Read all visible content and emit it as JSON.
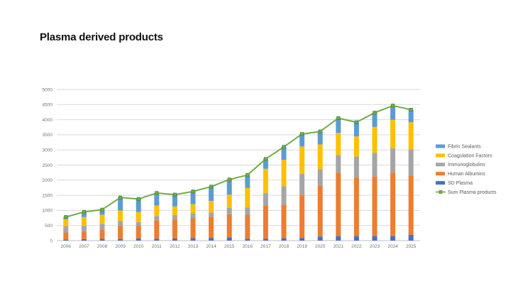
{
  "title": "Plasma derived products",
  "chart_data": {
    "type": "bar",
    "subtype": "stacked-column-with-line",
    "title": "Plasma derived products",
    "xlabel": "",
    "ylabel": "",
    "ylim": [
      0,
      5000
    ],
    "ytick_step": 500,
    "yticks": [
      0,
      500,
      1000,
      1500,
      2000,
      2500,
      3000,
      3500,
      4000,
      4500,
      5000
    ],
    "grid": true,
    "legend_position": "right",
    "categories": [
      "2006",
      "2007",
      "2008",
      "2009",
      "2010",
      "2011",
      "2012",
      "2013",
      "2014",
      "2015",
      "2016",
      "2017",
      "2018",
      "2019",
      "2020",
      "2021",
      "2022",
      "2023",
      "2024",
      "2025"
    ],
    "stack_bottom_to_top": [
      "SD Plasma",
      "Human Albumins",
      "Immunoglobulins",
      "Coagulation Factors",
      "Fibrin Sealants"
    ],
    "series": [
      {
        "name": "Fibrin Sealants",
        "color": "#5B9BD5",
        "values": [
          70,
          170,
          170,
          430,
          430,
          415,
          390,
          420,
          470,
          500,
          430,
          325,
          430,
          410,
          430,
          485,
          470,
          470,
          470,
          415
        ]
      },
      {
        "name": "Coagulation Factors",
        "color": "#FFC000",
        "values": [
          240,
          290,
          300,
          350,
          330,
          345,
          280,
          295,
          390,
          435,
          640,
          795,
          870,
          905,
          820,
          740,
          665,
          860,
          935,
          900
        ]
      },
      {
        "name": "Immunoglobulins",
        "color": "#A5A5A5",
        "values": [
          200,
          180,
          195,
          155,
          125,
          140,
          155,
          170,
          135,
          210,
          255,
          430,
          610,
          700,
          550,
          585,
          700,
          780,
          820,
          860
        ]
      },
      {
        "name": "Human Albumins",
        "color": "#ED7D31",
        "values": [
          230,
          260,
          305,
          435,
          420,
          610,
          625,
          655,
          700,
          765,
          780,
          1090,
          1110,
          1420,
          1680,
          2090,
          1930,
          1970,
          2090,
          1965
        ]
      },
      {
        "name": "SD Plasma",
        "color": "#4472C4",
        "values": [
          40,
          50,
          55,
          55,
          70,
          65,
          70,
          85,
          90,
          110,
          65,
          60,
          80,
          90,
          130,
          150,
          150,
          150,
          150,
          190
        ]
      }
    ],
    "line_series": {
      "name": "Sum Plasma products",
      "color": "#70AD47",
      "marker_color": "#548235",
      "values": [
        780,
        950,
        1025,
        1425,
        1375,
        1575,
        1520,
        1625,
        1785,
        2020,
        2170,
        2700,
        3100,
        3525,
        3610,
        4050,
        3915,
        4230,
        4465,
        4330
      ]
    },
    "legend": [
      "Fibrin Sealants",
      "Coagulation Factors",
      "Immunoglobulins",
      "Human Albumins",
      "SD Plasma",
      "Sum Plasma products"
    ],
    "style": {
      "gridline_color": "#D9D9D9",
      "axis_line_color": "#BFBFBF",
      "tick_label_color": "#737373",
      "legend_text_color": "#595959",
      "background": "#FFFFFF"
    }
  }
}
